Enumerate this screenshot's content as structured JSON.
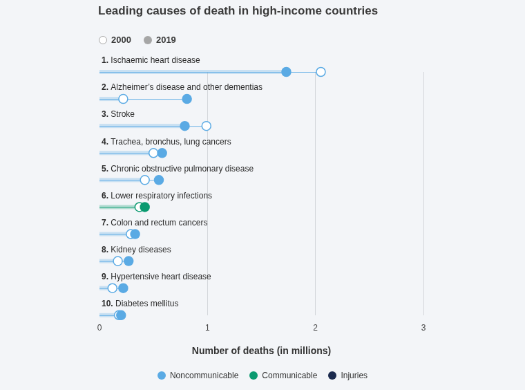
{
  "chart_data": {
    "type": "dumbbell",
    "title": "Leading causes of death in high-income countries",
    "orientation": "horizontal",
    "categories": [
      "1. Ischaemic heart disease",
      "2. Alzheimer’s disease and other dementias",
      "3. Stroke",
      "4. Trachea, bronchus, lung cancers",
      "5. Chronic obstructive pulmonary disease",
      "6. Lower respiratory infections",
      "7. Colon and rectum cancers",
      "8. Kidney diseases",
      "9. Hypertensive heart disease",
      "10. Diabetes mellitus"
    ],
    "series": [
      {
        "name": "2000",
        "marker": "hollow",
        "values": [
          2.05,
          0.22,
          0.99,
          0.5,
          0.42,
          0.37,
          0.29,
          0.17,
          0.12,
          0.18
        ]
      },
      {
        "name": "2019",
        "marker": "filled",
        "values": [
          1.73,
          0.81,
          0.79,
          0.58,
          0.55,
          0.42,
          0.33,
          0.27,
          0.22,
          0.2
        ]
      }
    ],
    "category_groups": [
      "Noncommunicable",
      "Noncommunicable",
      "Noncommunicable",
      "Noncommunicable",
      "Noncommunicable",
      "Communicable",
      "Noncommunicable",
      "Noncommunicable",
      "Noncommunicable",
      "Noncommunicable"
    ],
    "groups": [
      {
        "name": "Noncommunicable",
        "color": "#5aaae4"
      },
      {
        "name": "Communicable",
        "color": "#0a9a70"
      },
      {
        "name": "Injuries",
        "color": "#1b2a4e"
      }
    ],
    "x_label": "Number of deaths (in millions)",
    "xlim": [
      0,
      3
    ],
    "xticks": [
      0,
      1,
      2,
      3
    ],
    "grid": true
  }
}
